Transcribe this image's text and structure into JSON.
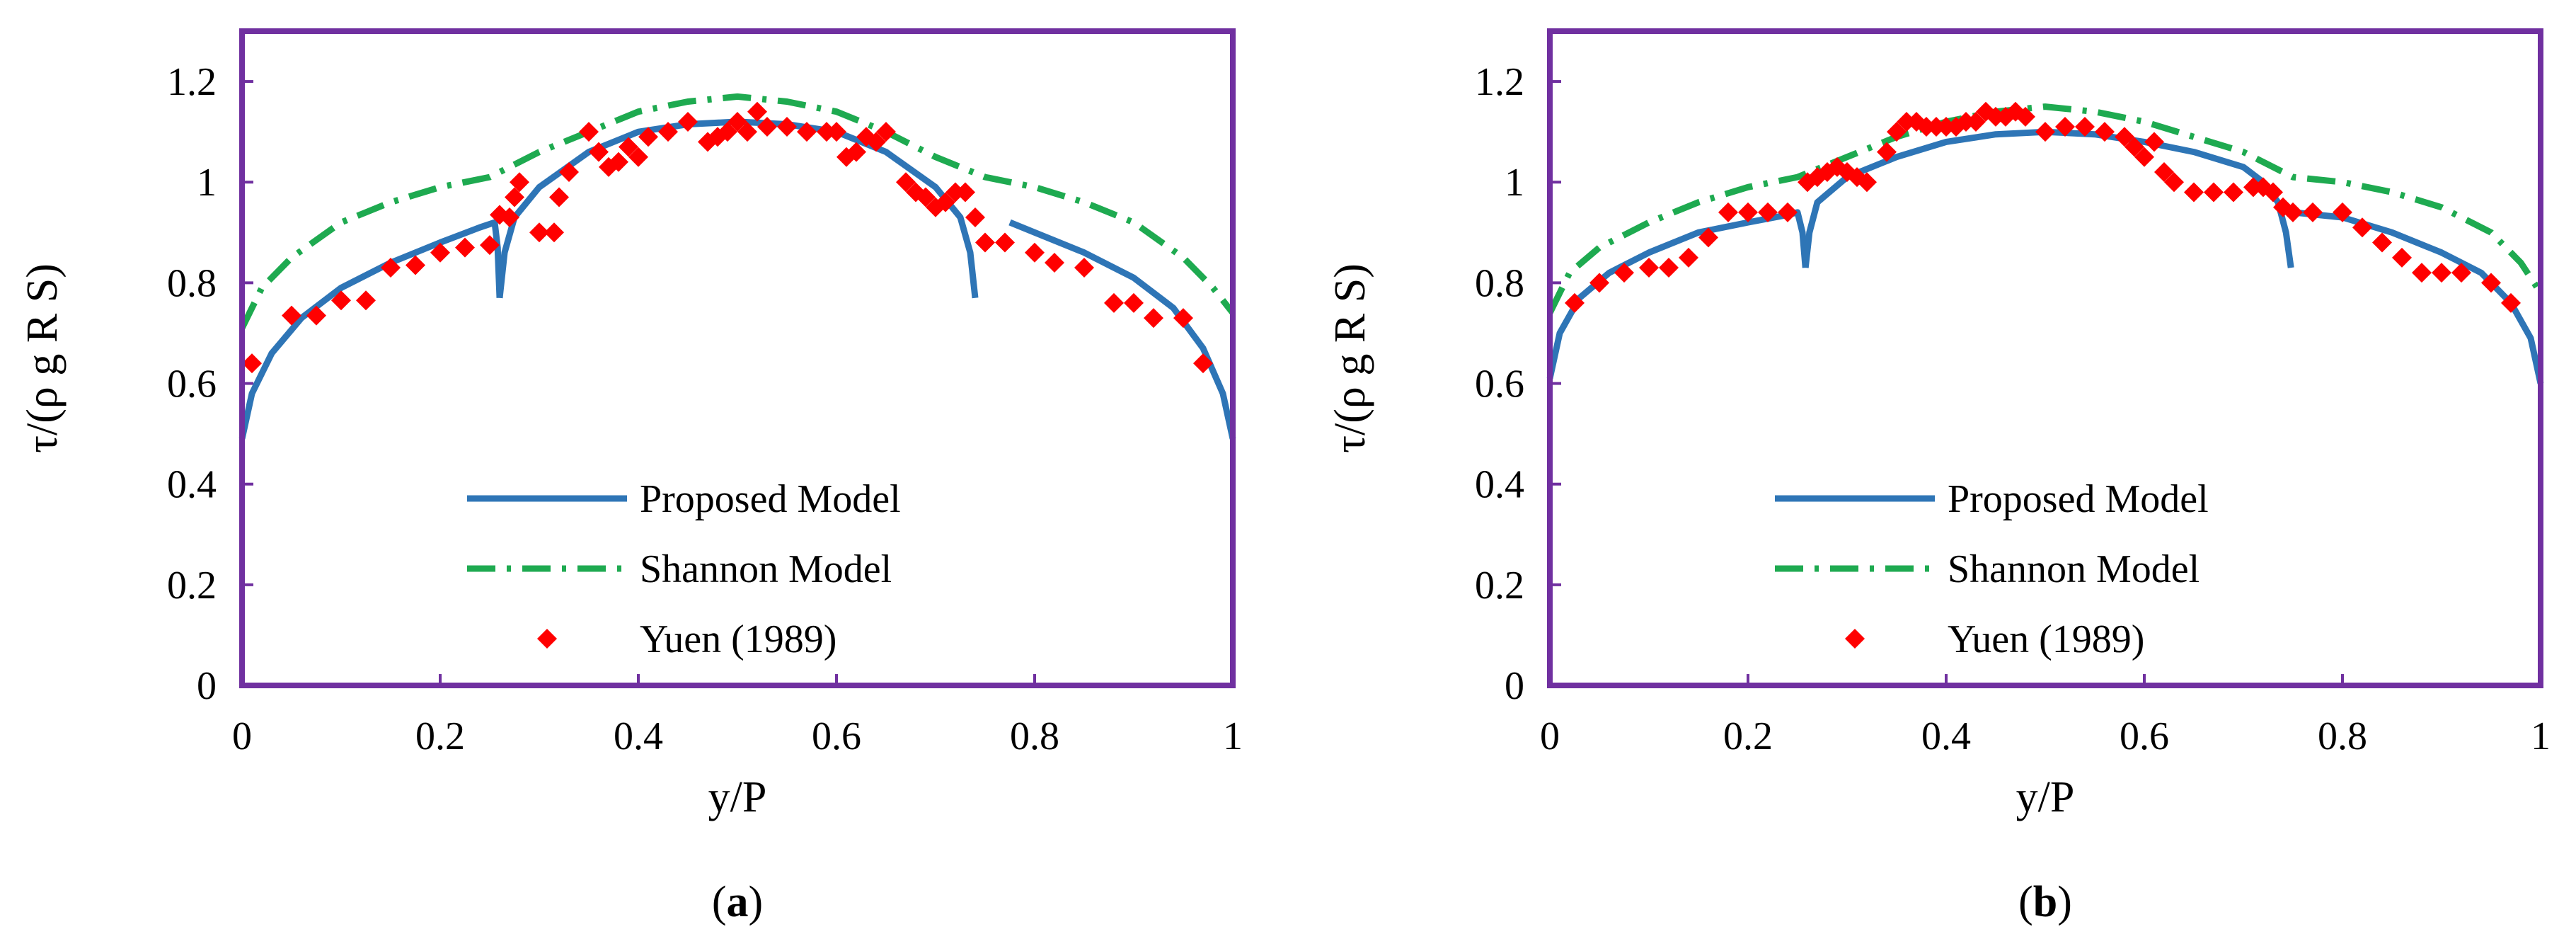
{
  "figure": {
    "captions": [
      {
        "open": "(",
        "letter": "a",
        "close": ")"
      },
      {
        "open": "(",
        "letter": "b",
        "close": ")"
      }
    ],
    "colors": {
      "frame": "#7030A0",
      "proposed": "#2E75B6",
      "shannon": "#1EAA50",
      "yuen": "#FF0000"
    }
  },
  "chart_data": [
    {
      "type": "line",
      "panel": "a",
      "xlabel": "y/P",
      "ylabel": "τ/(ρ g R S)",
      "xlim": [
        0,
        1
      ],
      "ylim": [
        0,
        1.3
      ],
      "xticks": [
        0,
        0.2,
        0.4,
        0.6,
        0.8,
        1
      ],
      "xtick_labels": [
        "0",
        "0.2",
        "0.4",
        "0.6",
        "0.8",
        "1"
      ],
      "yticks": [
        0,
        0.2,
        0.4,
        0.6,
        0.8,
        1,
        1.2
      ],
      "ytick_labels": [
        "0",
        "0.2",
        "0.4",
        "0.6",
        "0.8",
        "1",
        "1.2"
      ],
      "legend": [
        "Proposed Model",
        "Shannon Model",
        "Yuen (1989)"
      ],
      "series": [
        {
          "name": "Proposed Model",
          "style": "solid",
          "segments": [
            [
              [
                0,
                0.49
              ],
              [
                0.01,
                0.58
              ],
              [
                0.03,
                0.66
              ],
              [
                0.06,
                0.73
              ],
              [
                0.1,
                0.79
              ],
              [
                0.15,
                0.84
              ],
              [
                0.2,
                0.88
              ],
              [
                0.24,
                0.91
              ],
              [
                0.255,
                0.92
              ],
              [
                0.258,
                0.87
              ],
              [
                0.26,
                0.77
              ]
            ],
            [
              [
                0.26,
                0.77
              ],
              [
                0.265,
                0.86
              ],
              [
                0.275,
                0.93
              ],
              [
                0.3,
                0.99
              ],
              [
                0.35,
                1.06
              ],
              [
                0.4,
                1.1
              ],
              [
                0.45,
                1.115
              ],
              [
                0.5,
                1.12
              ],
              [
                0.55,
                1.115
              ],
              [
                0.6,
                1.1
              ],
              [
                0.65,
                1.06
              ],
              [
                0.7,
                0.99
              ],
              [
                0.725,
                0.93
              ],
              [
                0.735,
                0.86
              ],
              [
                0.74,
                0.77
              ]
            ],
            [
              [
                0.775,
                0.92
              ],
              [
                0.8,
                0.9
              ],
              [
                0.85,
                0.86
              ],
              [
                0.9,
                0.81
              ],
              [
                0.94,
                0.75
              ],
              [
                0.97,
                0.67
              ],
              [
                0.99,
                0.58
              ],
              [
                1,
                0.49
              ]
            ]
          ]
        },
        {
          "name": "Shannon Model",
          "style": "dashdot",
          "segments": [
            [
              [
                0,
                0.71
              ],
              [
                0.02,
                0.79
              ],
              [
                0.05,
                0.85
              ],
              [
                0.1,
                0.92
              ],
              [
                0.15,
                0.96
              ],
              [
                0.2,
                0.99
              ],
              [
                0.25,
                1.01
              ],
              [
                0.3,
                1.06
              ],
              [
                0.35,
                1.1
              ],
              [
                0.4,
                1.14
              ],
              [
                0.45,
                1.16
              ],
              [
                0.5,
                1.17
              ],
              [
                0.55,
                1.16
              ],
              [
                0.6,
                1.14
              ],
              [
                0.65,
                1.1
              ],
              [
                0.7,
                1.05
              ],
              [
                0.75,
                1.01
              ],
              [
                0.8,
                0.99
              ],
              [
                0.85,
                0.96
              ],
              [
                0.9,
                0.92
              ],
              [
                0.95,
                0.85
              ],
              [
                0.98,
                0.79
              ],
              [
                1,
                0.74
              ]
            ]
          ]
        }
      ],
      "scatter": {
        "name": "Yuen (1989)",
        "points": [
          [
            0.01,
            0.64
          ],
          [
            0.05,
            0.735
          ],
          [
            0.075,
            0.735
          ],
          [
            0.1,
            0.765
          ],
          [
            0.125,
            0.765
          ],
          [
            0.15,
            0.83
          ],
          [
            0.175,
            0.835
          ],
          [
            0.2,
            0.86
          ],
          [
            0.225,
            0.87
          ],
          [
            0.25,
            0.875
          ],
          [
            0.26,
            0.935
          ],
          [
            0.27,
            0.93
          ],
          [
            0.275,
            0.97
          ],
          [
            0.28,
            1.0
          ],
          [
            0.3,
            0.9
          ],
          [
            0.315,
            0.9
          ],
          [
            0.32,
            0.97
          ],
          [
            0.33,
            1.02
          ],
          [
            0.35,
            1.1
          ],
          [
            0.36,
            1.06
          ],
          [
            0.37,
            1.03
          ],
          [
            0.38,
            1.04
          ],
          [
            0.39,
            1.07
          ],
          [
            0.4,
            1.05
          ],
          [
            0.41,
            1.09
          ],
          [
            0.43,
            1.1
          ],
          [
            0.45,
            1.12
          ],
          [
            0.47,
            1.08
          ],
          [
            0.48,
            1.09
          ],
          [
            0.49,
            1.1
          ],
          [
            0.5,
            1.12
          ],
          [
            0.51,
            1.1
          ],
          [
            0.52,
            1.14
          ],
          [
            0.53,
            1.11
          ],
          [
            0.55,
            1.11
          ],
          [
            0.57,
            1.1
          ],
          [
            0.59,
            1.1
          ],
          [
            0.6,
            1.1
          ],
          [
            0.61,
            1.05
          ],
          [
            0.62,
            1.06
          ],
          [
            0.63,
            1.09
          ],
          [
            0.64,
            1.08
          ],
          [
            0.65,
            1.1
          ],
          [
            0.67,
            1.0
          ],
          [
            0.68,
            0.98
          ],
          [
            0.69,
            0.97
          ],
          [
            0.7,
            0.95
          ],
          [
            0.71,
            0.96
          ],
          [
            0.72,
            0.98
          ],
          [
            0.73,
            0.98
          ],
          [
            0.74,
            0.93
          ],
          [
            0.75,
            0.88
          ],
          [
            0.77,
            0.88
          ],
          [
            0.8,
            0.86
          ],
          [
            0.82,
            0.84
          ],
          [
            0.85,
            0.83
          ],
          [
            0.88,
            0.76
          ],
          [
            0.9,
            0.76
          ],
          [
            0.92,
            0.73
          ],
          [
            0.95,
            0.73
          ],
          [
            0.97,
            0.64
          ]
        ]
      }
    },
    {
      "type": "line",
      "panel": "b",
      "xlabel": "y/P",
      "ylabel": "τ/(ρ g R S)",
      "xlim": [
        0,
        1
      ],
      "ylim": [
        0,
        1.3
      ],
      "xticks": [
        0,
        0.2,
        0.4,
        0.6,
        0.8,
        1
      ],
      "xtick_labels": [
        "0",
        "0.2",
        "0.4",
        "0.6",
        "0.8",
        "1"
      ],
      "yticks": [
        0,
        0.2,
        0.4,
        0.6,
        0.8,
        1,
        1.2
      ],
      "ytick_labels": [
        "0",
        "0.2",
        "0.4",
        "0.6",
        "0.8",
        "1",
        "1.2"
      ],
      "legend": [
        "Proposed Model",
        "Shannon Model",
        "Yuen (1989)"
      ],
      "series": [
        {
          "name": "Proposed Model",
          "style": "solid",
          "segments": [
            [
              [
                0,
                0.61
              ],
              [
                0.01,
                0.7
              ],
              [
                0.03,
                0.77
              ],
              [
                0.06,
                0.82
              ],
              [
                0.1,
                0.86
              ],
              [
                0.15,
                0.9
              ],
              [
                0.2,
                0.92
              ],
              [
                0.24,
                0.935
              ],
              [
                0.25,
                0.94
              ],
              [
                0.255,
                0.9
              ],
              [
                0.258,
                0.83
              ]
            ],
            [
              [
                0.258,
                0.83
              ],
              [
                0.262,
                0.9
              ],
              [
                0.27,
                0.96
              ],
              [
                0.3,
                1.01
              ],
              [
                0.35,
                1.05
              ],
              [
                0.4,
                1.08
              ],
              [
                0.45,
                1.095
              ],
              [
                0.5,
                1.1
              ],
              [
                0.55,
                1.095
              ],
              [
                0.6,
                1.08
              ],
              [
                0.65,
                1.06
              ],
              [
                0.7,
                1.03
              ],
              [
                0.72,
                1.0
              ],
              [
                0.735,
                0.96
              ],
              [
                0.743,
                0.9
              ],
              [
                0.748,
                0.83
              ]
            ],
            [
              [
                0.75,
                0.94
              ],
              [
                0.8,
                0.93
              ],
              [
                0.85,
                0.9
              ],
              [
                0.9,
                0.86
              ],
              [
                0.94,
                0.82
              ],
              [
                0.97,
                0.76
              ],
              [
                0.99,
                0.69
              ],
              [
                1,
                0.6
              ]
            ]
          ]
        },
        {
          "name": "Shannon Model",
          "style": "dashdot",
          "segments": [
            [
              [
                0,
                0.74
              ],
              [
                0.02,
                0.82
              ],
              [
                0.05,
                0.87
              ],
              [
                0.1,
                0.92
              ],
              [
                0.15,
                0.96
              ],
              [
                0.2,
                0.99
              ],
              [
                0.25,
                1.01
              ],
              [
                0.3,
                1.05
              ],
              [
                0.35,
                1.09
              ],
              [
                0.4,
                1.12
              ],
              [
                0.45,
                1.14
              ],
              [
                0.5,
                1.15
              ],
              [
                0.55,
                1.14
              ],
              [
                0.6,
                1.12
              ],
              [
                0.65,
                1.09
              ],
              [
                0.7,
                1.06
              ],
              [
                0.75,
                1.01
              ],
              [
                0.8,
                1.0
              ],
              [
                0.85,
                0.98
              ],
              [
                0.9,
                0.95
              ],
              [
                0.95,
                0.9
              ],
              [
                0.98,
                0.84
              ],
              [
                1,
                0.78
              ]
            ]
          ]
        }
      ],
      "scatter": {
        "name": "Yuen (1989)",
        "points": [
          [
            0.025,
            0.76
          ],
          [
            0.05,
            0.8
          ],
          [
            0.075,
            0.82
          ],
          [
            0.1,
            0.83
          ],
          [
            0.12,
            0.83
          ],
          [
            0.14,
            0.85
          ],
          [
            0.16,
            0.89
          ],
          [
            0.18,
            0.94
          ],
          [
            0.2,
            0.94
          ],
          [
            0.22,
            0.94
          ],
          [
            0.24,
            0.94
          ],
          [
            0.26,
            1.0
          ],
          [
            0.27,
            1.01
          ],
          [
            0.28,
            1.02
          ],
          [
            0.29,
            1.03
          ],
          [
            0.3,
            1.02
          ],
          [
            0.31,
            1.01
          ],
          [
            0.32,
            1.0
          ],
          [
            0.34,
            1.06
          ],
          [
            0.35,
            1.1
          ],
          [
            0.36,
            1.12
          ],
          [
            0.37,
            1.12
          ],
          [
            0.38,
            1.11
          ],
          [
            0.39,
            1.11
          ],
          [
            0.4,
            1.11
          ],
          [
            0.41,
            1.11
          ],
          [
            0.42,
            1.12
          ],
          [
            0.43,
            1.12
          ],
          [
            0.44,
            1.14
          ],
          [
            0.45,
            1.13
          ],
          [
            0.46,
            1.13
          ],
          [
            0.47,
            1.14
          ],
          [
            0.48,
            1.13
          ],
          [
            0.5,
            1.1
          ],
          [
            0.52,
            1.11
          ],
          [
            0.54,
            1.11
          ],
          [
            0.56,
            1.1
          ],
          [
            0.58,
            1.09
          ],
          [
            0.59,
            1.07
          ],
          [
            0.6,
            1.05
          ],
          [
            0.61,
            1.08
          ],
          [
            0.62,
            1.02
          ],
          [
            0.63,
            1.0
          ],
          [
            0.65,
            0.98
          ],
          [
            0.67,
            0.98
          ],
          [
            0.69,
            0.98
          ],
          [
            0.71,
            0.99
          ],
          [
            0.72,
            0.99
          ],
          [
            0.73,
            0.98
          ],
          [
            0.74,
            0.95
          ],
          [
            0.75,
            0.94
          ],
          [
            0.77,
            0.94
          ],
          [
            0.8,
            0.94
          ],
          [
            0.82,
            0.91
          ],
          [
            0.84,
            0.88
          ],
          [
            0.86,
            0.85
          ],
          [
            0.88,
            0.82
          ],
          [
            0.9,
            0.82
          ],
          [
            0.92,
            0.82
          ],
          [
            0.95,
            0.8
          ],
          [
            0.97,
            0.76
          ]
        ]
      }
    }
  ]
}
